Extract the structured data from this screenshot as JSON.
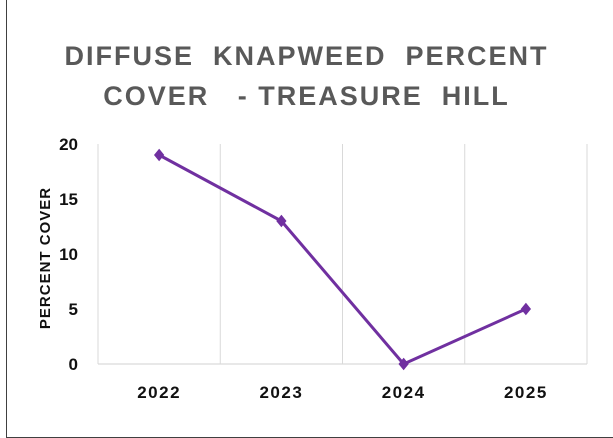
{
  "chart_data": {
    "type": "line",
    "title_lines": [
      "DIFFUSE  KNAPWEED  PERCENT",
      "COVER   - TREASURE  HILL"
    ],
    "xlabel": "",
    "ylabel": "PERCENT COVER",
    "categories": [
      "2022",
      "2023",
      "2024",
      "2025"
    ],
    "series": [
      {
        "values": [
          19,
          13,
          0,
          5
        ]
      }
    ],
    "ylim": [
      0,
      20
    ],
    "yticks": [
      0,
      5,
      10,
      15,
      20
    ],
    "grid": true,
    "line_color": "#7030A0",
    "grid_color": "#d9d9d9"
  }
}
